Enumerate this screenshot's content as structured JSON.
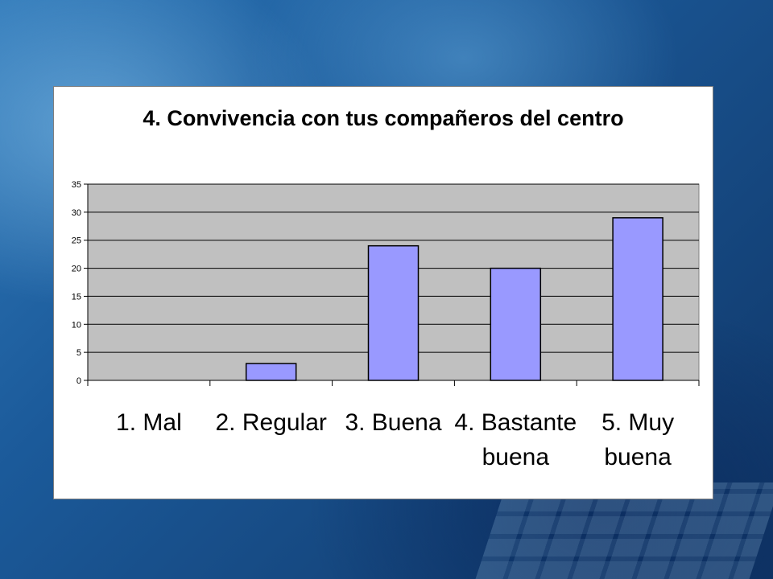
{
  "chart_data": {
    "type": "bar",
    "title": "4. Convivencia con tus compañeros del centro",
    "categories": [
      "1. Mal",
      "2. Regular",
      "3. Buena",
      "4. Bastante buena",
      "5. Muy buena"
    ],
    "category_lines": [
      [
        "1. Mal"
      ],
      [
        "2. Regular"
      ],
      [
        "3. Buena"
      ],
      [
        "4. Bastante",
        "buena"
      ],
      [
        "5. Muy",
        "buena"
      ]
    ],
    "values": [
      0,
      3,
      24,
      20,
      29
    ],
    "xlabel": "",
    "ylabel": "",
    "ylim": [
      0,
      35
    ],
    "yticks": [
      0,
      5,
      10,
      15,
      20,
      25,
      30,
      35
    ],
    "grid": true,
    "legend": "none",
    "colors": {
      "bar_fill": "#9999ff",
      "bar_stroke": "#000000",
      "plot_background": "#c0c0c0",
      "gridline": "#000000",
      "panel_background": "#ffffff"
    }
  }
}
